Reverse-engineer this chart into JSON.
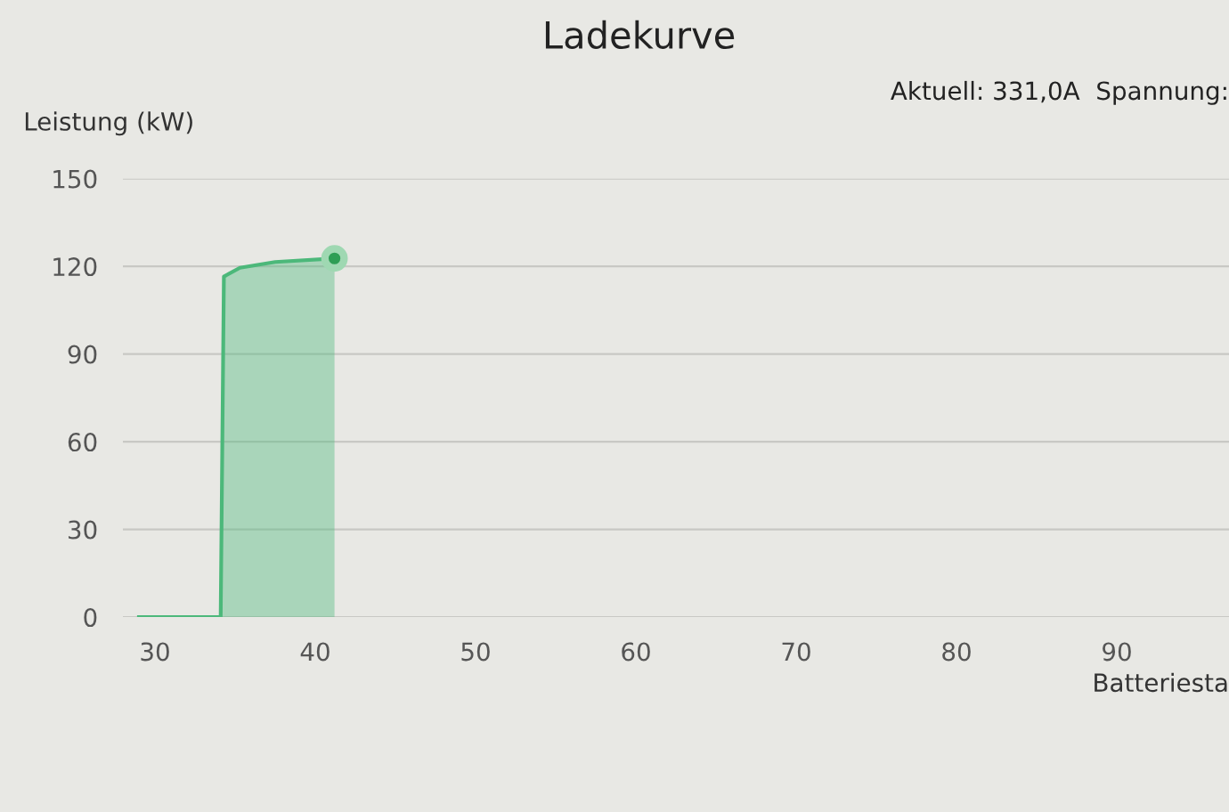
{
  "chart_data": {
    "type": "area",
    "title": "Ladekurve",
    "xlabel": "Batteriesta",
    "ylabel": "Leistung (kW)",
    "annotations": [
      "Aktuell: 331,0A  Spannung:"
    ],
    "series": [
      {
        "color": "#4cb87a",
        "x": [
          29,
          34.1,
          34.3,
          35.3,
          37.5,
          41.2
        ],
        "values": [
          0,
          0,
          116.5,
          119.5,
          121.5,
          122.7
        ]
      },
      {
        "type": "scatter",
        "color": "#2e9e55",
        "x": [
          41.2
        ],
        "values": [
          122.7
        ],
        "marker": "circle"
      }
    ],
    "xlim": [
      28,
      97
    ],
    "ylim": [
      0,
      150
    ],
    "xticks": [
      30,
      40,
      50,
      60,
      70,
      80,
      90
    ],
    "yticks": [
      0,
      30,
      60,
      90,
      120,
      150
    ],
    "grid": "y"
  }
}
